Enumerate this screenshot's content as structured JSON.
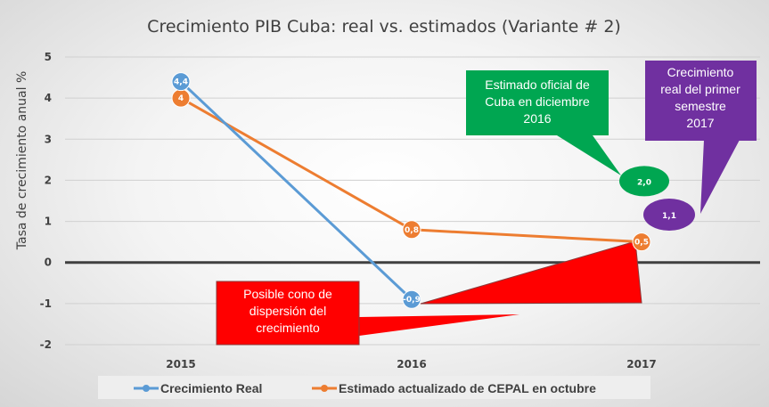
{
  "chart_data": {
    "type": "line",
    "title": "Crecimiento PIB Cuba: real vs. estimados (Variante # 2)",
    "xlabel": "",
    "ylabel": "Tasa de crecimiento anual %",
    "categories": [
      "2015",
      "2016",
      "2017"
    ],
    "ylim": [
      -2,
      5
    ],
    "yticks": [
      5,
      4,
      3,
      2,
      1,
      0,
      -1,
      -2
    ],
    "grid": true,
    "legend_position": "bottom",
    "series": [
      {
        "name": "Crecimiento Real",
        "color": "#5b9bd5",
        "values": [
          4.4,
          -0.9,
          null
        ],
        "labels": [
          "4,4",
          "-0,9",
          null
        ]
      },
      {
        "name": "Estimado actualizado de CEPAL en octubre",
        "color": "#ed7d31",
        "values": [
          4,
          0.8,
          0.5
        ],
        "labels": [
          "4",
          "0,8",
          "0,5"
        ]
      }
    ],
    "annotations": [
      {
        "text_lines": [
          "Estimado oficial de",
          "Cuba en diciembre",
          "2016"
        ],
        "color": "#00a651",
        "marker_value": 2.0,
        "marker_label": "2,0",
        "category": "2017"
      },
      {
        "text_lines": [
          "Crecimiento",
          "real del primer",
          "semestre",
          "2017"
        ],
        "color": "#7030a0",
        "marker_value": 1.1,
        "marker_label": "1,1",
        "category": "2017"
      },
      {
        "text_lines": [
          "Posible cono de",
          "dispersión del",
          "crecimiento"
        ],
        "color": "#ff0000"
      }
    ]
  }
}
